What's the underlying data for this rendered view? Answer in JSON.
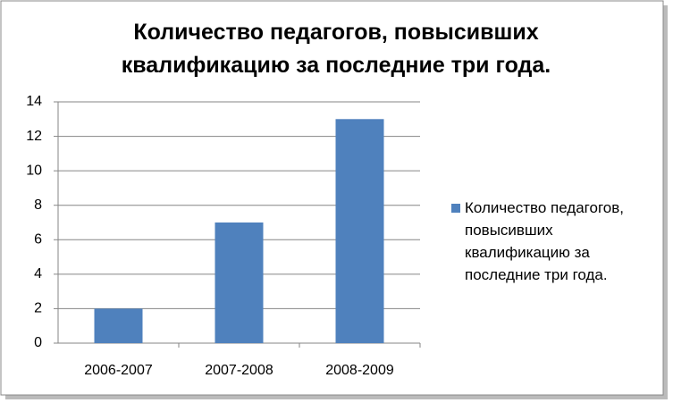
{
  "chart_data": {
    "type": "bar",
    "title": "Количество педагогов, повысивших квалификацию за последние три года.",
    "categories": [
      "2006-2007",
      "2007-2008",
      "2008-2009"
    ],
    "series": [
      {
        "name": "Количество педагогов, повысивших квалификацию за последние три года.",
        "color": "#4f81bd",
        "values": [
          2,
          7,
          13
        ]
      }
    ],
    "ylim": [
      0,
      14
    ],
    "yticks": [
      0,
      2,
      4,
      6,
      8,
      10,
      12,
      14
    ],
    "grid": true,
    "legend": "right"
  }
}
